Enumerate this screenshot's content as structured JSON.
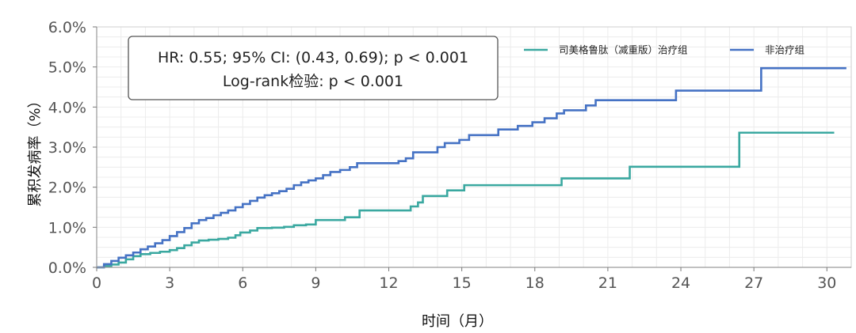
{
  "chart_data": {
    "type": "line",
    "title": "",
    "xlabel": "时间（月）",
    "ylabel": "累积发病率（%）",
    "xlim": [
      0,
      31
    ],
    "ylim": [
      0,
      6
    ],
    "xticks": [
      0,
      3,
      6,
      9,
      12,
      15,
      18,
      21,
      24,
      27,
      30
    ],
    "yticks": [
      0,
      1,
      2,
      3,
      4,
      5,
      6
    ],
    "yticklabels": [
      "0.0%",
      "1.0%",
      "2.0%",
      "3.0%",
      "4.0%",
      "5.0%",
      "6.0%"
    ],
    "grid": true,
    "legend_position": "top-right",
    "annotation": {
      "line1": "HR: 0.55; 95% CI: (0.43, 0.69); p < 0.001",
      "line2": "Log-rank检验: p < 0.001"
    },
    "series": [
      {
        "name": "司美格鲁肽（减重版）治疗组",
        "color": "#3aa8a0",
        "step": true,
        "points": [
          [
            0,
            0
          ],
          [
            0.3,
            0.03
          ],
          [
            0.6,
            0.07
          ],
          [
            0.9,
            0.12
          ],
          [
            1.2,
            0.2
          ],
          [
            1.5,
            0.28
          ],
          [
            1.8,
            0.33
          ],
          [
            2.2,
            0.36
          ],
          [
            2.6,
            0.39
          ],
          [
            3.0,
            0.43
          ],
          [
            3.3,
            0.48
          ],
          [
            3.6,
            0.55
          ],
          [
            3.9,
            0.62
          ],
          [
            4.2,
            0.67
          ],
          [
            4.6,
            0.69
          ],
          [
            5.0,
            0.71
          ],
          [
            5.4,
            0.74
          ],
          [
            5.7,
            0.8
          ],
          [
            5.9,
            0.87
          ],
          [
            6.3,
            0.92
          ],
          [
            6.6,
            0.98
          ],
          [
            7.2,
            0.99
          ],
          [
            7.7,
            1.01
          ],
          [
            8.1,
            1.05
          ],
          [
            8.6,
            1.07
          ],
          [
            9.0,
            1.18
          ],
          [
            10.2,
            1.25
          ],
          [
            10.8,
            1.42
          ],
          [
            12.9,
            1.52
          ],
          [
            13.2,
            1.62
          ],
          [
            13.4,
            1.78
          ],
          [
            14.4,
            1.92
          ],
          [
            15.1,
            2.05
          ],
          [
            19.1,
            2.22
          ],
          [
            21.9,
            2.51
          ],
          [
            26.4,
            3.36
          ],
          [
            30.3,
            3.36
          ]
        ]
      },
      {
        "name": "非治疗组",
        "color": "#4572c4",
        "step": true,
        "points": [
          [
            0,
            0
          ],
          [
            0.3,
            0.08
          ],
          [
            0.6,
            0.16
          ],
          [
            0.9,
            0.24
          ],
          [
            1.2,
            0.3
          ],
          [
            1.5,
            0.37
          ],
          [
            1.8,
            0.45
          ],
          [
            2.1,
            0.52
          ],
          [
            2.4,
            0.6
          ],
          [
            2.7,
            0.68
          ],
          [
            3.0,
            0.78
          ],
          [
            3.3,
            0.88
          ],
          [
            3.6,
            0.98
          ],
          [
            3.9,
            1.1
          ],
          [
            4.2,
            1.18
          ],
          [
            4.5,
            1.23
          ],
          [
            4.8,
            1.3
          ],
          [
            5.1,
            1.36
          ],
          [
            5.4,
            1.42
          ],
          [
            5.7,
            1.5
          ],
          [
            6.0,
            1.58
          ],
          [
            6.3,
            1.66
          ],
          [
            6.6,
            1.74
          ],
          [
            6.9,
            1.8
          ],
          [
            7.2,
            1.85
          ],
          [
            7.5,
            1.9
          ],
          [
            7.8,
            1.96
          ],
          [
            8.1,
            2.05
          ],
          [
            8.4,
            2.12
          ],
          [
            8.7,
            2.17
          ],
          [
            9.0,
            2.22
          ],
          [
            9.3,
            2.3
          ],
          [
            9.6,
            2.38
          ],
          [
            10.0,
            2.43
          ],
          [
            10.4,
            2.5
          ],
          [
            10.7,
            2.6
          ],
          [
            11.3,
            2.6
          ],
          [
            12.4,
            2.65
          ],
          [
            12.7,
            2.72
          ],
          [
            13.0,
            2.87
          ],
          [
            14.0,
            3.0
          ],
          [
            14.3,
            3.1
          ],
          [
            14.9,
            3.18
          ],
          [
            15.3,
            3.3
          ],
          [
            16.5,
            3.44
          ],
          [
            17.3,
            3.53
          ],
          [
            17.9,
            3.62
          ],
          [
            18.4,
            3.72
          ],
          [
            18.9,
            3.84
          ],
          [
            19.2,
            3.92
          ],
          [
            20.1,
            4.04
          ],
          [
            20.5,
            4.17
          ],
          [
            23.8,
            4.41
          ],
          [
            27.3,
            4.97
          ],
          [
            30.8,
            4.97
          ]
        ]
      }
    ]
  }
}
